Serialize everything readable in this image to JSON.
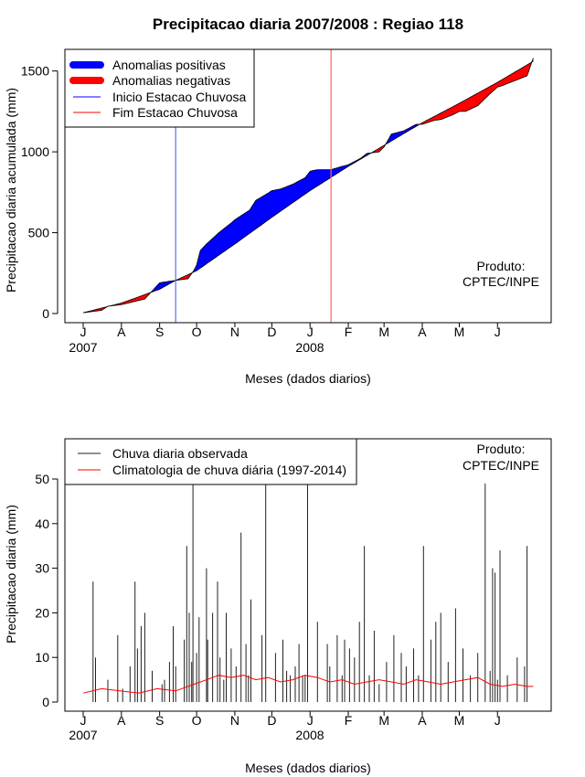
{
  "title": "Precipitacao diaria 2007/2008 : Regiao 118",
  "colors": {
    "positive": "#0000ff",
    "negative": "#ff0000",
    "start_line": "#5b6bff",
    "end_line": "#ff6666",
    "observed": "#222222",
    "climatology": "#ff0000"
  },
  "chart_data": [
    {
      "type": "area",
      "xlabel": "Meses (dados diarios)",
      "ylabel": "Precipitacao diaria acumulada (mm)",
      "ylim": [
        0,
        1600
      ],
      "yticks": [
        0,
        500,
        1000,
        1500
      ],
      "month_ticks": [
        "J",
        "A",
        "S",
        "O",
        "N",
        "D",
        "J",
        "F",
        "M",
        "A",
        "M",
        "J"
      ],
      "year_labels": [
        "2007",
        "2008"
      ],
      "legend": [
        "Anomalias positivas",
        "Anomalias negativas",
        "Inicio Estacao Chuvosa",
        "Fim Estacao Chuvosa"
      ],
      "product_label_1": "Produto:",
      "product_label_2": "CPTEC/INPE",
      "start_season_day": 75,
      "end_season_day": 201,
      "n_days": 365,
      "series": [
        {
          "name": "Climatologia acumulada",
          "day": [
            0,
            31,
            62,
            75,
            92,
            123,
            153,
            184,
            215,
            244,
            275,
            305,
            336,
            365
          ],
          "values": [
            5,
            65,
            150,
            205,
            265,
            430,
            595,
            760,
            910,
            1040,
            1180,
            1300,
            1430,
            1560
          ]
        },
        {
          "name": "Observado acumulado",
          "day": [
            0,
            5,
            15,
            20,
            31,
            50,
            62,
            70,
            75,
            85,
            90,
            92,
            95,
            100,
            110,
            120,
            123,
            135,
            140,
            150,
            153,
            160,
            170,
            180,
            184,
            190,
            201,
            210,
            215,
            225,
            230,
            240,
            244,
            250,
            260,
            265,
            270,
            275,
            285,
            290,
            300,
            305,
            310,
            320,
            330,
            336,
            340,
            350,
            360,
            365
          ],
          "values": [
            5,
            10,
            20,
            45,
            55,
            90,
            190,
            200,
            205,
            215,
            270,
            300,
            390,
            430,
            500,
            560,
            580,
            640,
            700,
            745,
            760,
            770,
            800,
            840,
            880,
            890,
            890,
            910,
            920,
            960,
            990,
            1000,
            1030,
            1110,
            1130,
            1150,
            1170,
            1170,
            1195,
            1200,
            1230,
            1250,
            1250,
            1285,
            1360,
            1400,
            1410,
            1440,
            1470,
            1580
          ]
        }
      ]
    },
    {
      "type": "bar",
      "xlabel": "Meses (dados diarios)",
      "ylabel": "Precipitacao diaria (mm)",
      "ylim": [
        0,
        58
      ],
      "yticks": [
        0,
        10,
        20,
        30,
        40,
        50
      ],
      "month_ticks": [
        "J",
        "A",
        "S",
        "O",
        "N",
        "D",
        "J",
        "F",
        "M",
        "A",
        "M",
        "J"
      ],
      "year_labels": [
        "2007",
        "2008"
      ],
      "legend": [
        "Chuva diaria observada",
        "Climatologia de chuva diária (1997-2014)"
      ],
      "product_label_1": "Produto:",
      "product_label_2": "CPTEC/INPE",
      "n_days": 365,
      "observed_day": [
        8,
        10,
        20,
        28,
        32,
        38,
        42,
        44,
        47,
        50,
        56,
        64,
        66,
        70,
        73,
        75,
        82,
        84,
        86,
        88,
        89,
        92,
        94,
        100,
        101,
        105,
        109,
        111,
        114,
        116,
        120,
        124,
        128,
        132,
        134,
        136,
        145,
        148,
        156,
        162,
        165,
        168,
        172,
        175,
        178,
        180,
        182,
        190,
        198,
        200,
        206,
        210,
        212,
        216,
        220,
        224,
        228,
        232,
        236,
        240,
        246,
        252,
        258,
        262,
        268,
        272,
        276,
        282,
        286,
        290,
        296,
        302,
        308,
        314,
        320,
        326,
        330,
        332,
        334,
        336,
        338,
        344,
        352,
        358,
        360
      ],
      "observed_values": [
        27,
        10,
        5,
        15,
        3,
        8,
        27,
        12,
        17,
        20,
        7,
        4,
        5,
        9,
        17,
        8,
        14,
        35,
        20,
        9,
        49,
        11,
        19,
        30,
        14,
        20,
        27,
        10,
        5,
        20,
        12,
        8,
        38,
        13,
        6,
        23,
        15,
        51,
        11,
        14,
        7,
        6,
        8,
        13,
        6,
        6,
        50,
        18,
        13,
        8,
        15,
        6,
        14,
        12,
        10,
        18,
        35,
        6,
        16,
        4,
        9,
        15,
        11,
        8,
        12,
        6,
        35,
        14,
        18,
        20,
        9,
        21,
        12,
        6,
        11,
        49,
        7,
        30,
        29,
        5,
        34,
        6,
        10,
        8,
        35
      ],
      "climatology_day": [
        0,
        15,
        30,
        45,
        60,
        75,
        90,
        105,
        110,
        120,
        130,
        140,
        150,
        160,
        170,
        180,
        190,
        200,
        210,
        220,
        230,
        240,
        250,
        260,
        270,
        280,
        290,
        300,
        310,
        320,
        330,
        340,
        350,
        360,
        365
      ],
      "climatology_values": [
        2,
        3,
        2.5,
        2,
        3,
        2.5,
        4,
        5.5,
        6,
        5.5,
        6,
        5,
        5.5,
        4.5,
        5,
        6,
        5.5,
        4.5,
        5,
        4,
        4.5,
        5,
        4.5,
        4,
        5,
        4.5,
        4,
        4.5,
        5,
        5.5,
        4,
        3.5,
        4,
        3.5,
        3.5
      ]
    }
  ]
}
